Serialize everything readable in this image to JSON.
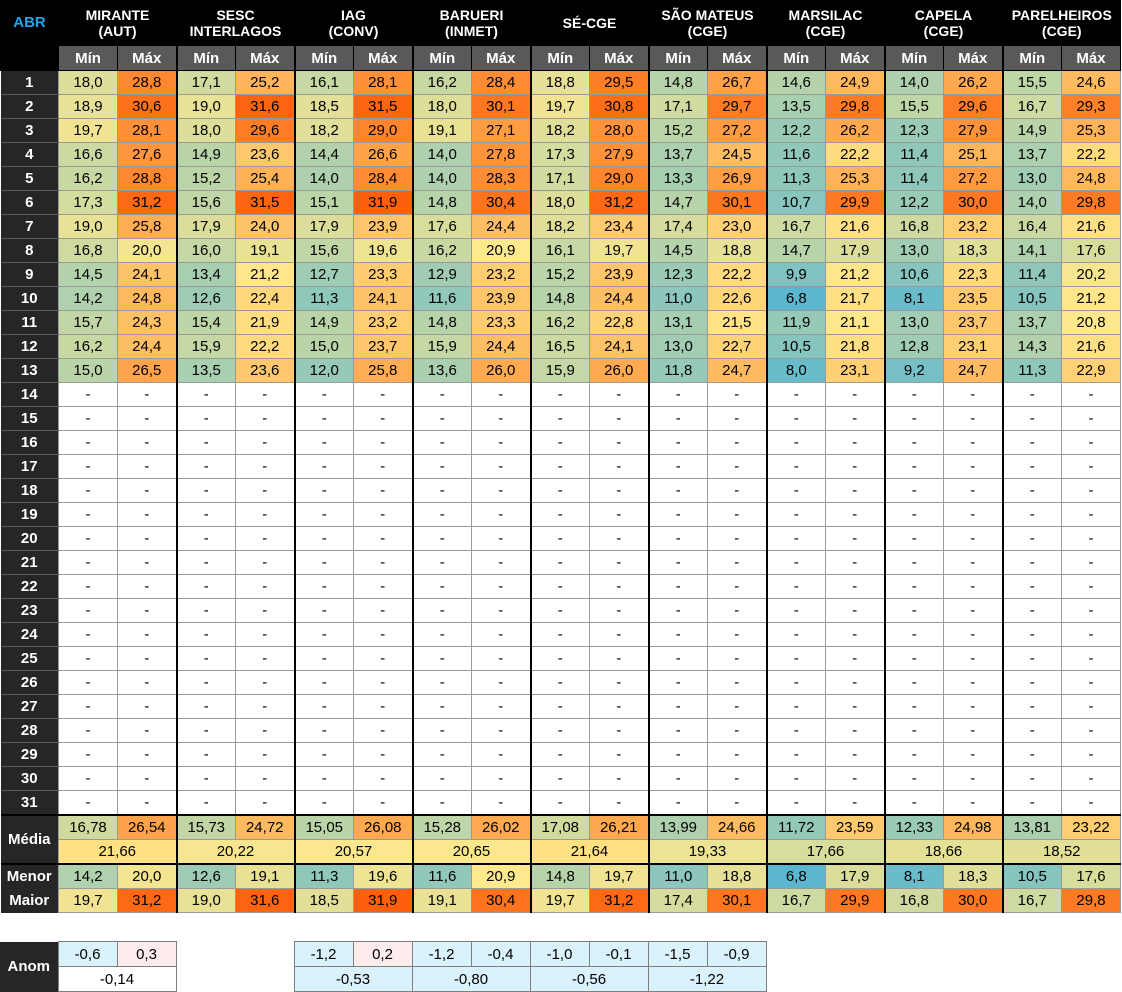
{
  "corner_label": "ABR",
  "min_label": "Mín",
  "max_label": "Máx",
  "stations": [
    {
      "line1": "MIRANTE",
      "line2": "(AUT)"
    },
    {
      "line1": "SESC",
      "line2": "INTERLAGOS"
    },
    {
      "line1": "IAG",
      "line2": "(CONV)"
    },
    {
      "line1": "BARUERI",
      "line2": "(INMET)"
    },
    {
      "line1": "SÉ-CGE",
      "line2": ""
    },
    {
      "line1": "SÃO MATEUS",
      "line2": "(CGE)"
    },
    {
      "line1": "MARSILAC",
      "line2": "(CGE)"
    },
    {
      "line1": "CAPELA",
      "line2": "(CGE)"
    },
    {
      "line1": "PARELHEIROS",
      "line2": "(CGE)"
    }
  ],
  "days": [
    {
      "day": "1",
      "values": [
        "18,0",
        "28,8",
        "17,1",
        "25,2",
        "16,1",
        "28,1",
        "16,2",
        "28,4",
        "18,8",
        "29,5",
        "14,8",
        "26,7",
        "14,6",
        "24,9",
        "14,0",
        "26,2",
        "15,5",
        "24,6"
      ]
    },
    {
      "day": "2",
      "values": [
        "18,9",
        "30,6",
        "19,0",
        "31,6",
        "18,5",
        "31,5",
        "18,0",
        "30,1",
        "19,7",
        "30,8",
        "17,1",
        "29,7",
        "13,5",
        "29,8",
        "15,5",
        "29,6",
        "16,7",
        "29,3"
      ]
    },
    {
      "day": "3",
      "values": [
        "19,7",
        "28,1",
        "18,0",
        "29,6",
        "18,2",
        "29,0",
        "19,1",
        "27,1",
        "18,2",
        "28,0",
        "15,2",
        "27,2",
        "12,2",
        "26,2",
        "12,3",
        "27,9",
        "14,9",
        "25,3"
      ]
    },
    {
      "day": "4",
      "values": [
        "16,6",
        "27,6",
        "14,9",
        "23,6",
        "14,4",
        "26,6",
        "14,0",
        "27,8",
        "17,3",
        "27,9",
        "13,7",
        "24,5",
        "11,6",
        "22,2",
        "11,4",
        "25,1",
        "13,7",
        "22,2"
      ]
    },
    {
      "day": "5",
      "values": [
        "16,2",
        "28,8",
        "15,2",
        "25,4",
        "14,0",
        "28,4",
        "14,0",
        "28,3",
        "17,1",
        "29,0",
        "13,3",
        "26,9",
        "11,3",
        "25,3",
        "11,4",
        "27,2",
        "13,0",
        "24,8"
      ]
    },
    {
      "day": "6",
      "values": [
        "17,3",
        "31,2",
        "15,6",
        "31,5",
        "15,1",
        "31,9",
        "14,8",
        "30,4",
        "18,0",
        "31,2",
        "14,7",
        "30,1",
        "10,7",
        "29,9",
        "12,2",
        "30,0",
        "14,0",
        "29,8"
      ]
    },
    {
      "day": "7",
      "values": [
        "19,0",
        "25,8",
        "17,9",
        "24,0",
        "17,9",
        "23,9",
        "17,6",
        "24,4",
        "18,2",
        "23,4",
        "17,4",
        "23,0",
        "16,7",
        "21,6",
        "16,8",
        "23,2",
        "16,4",
        "21,6"
      ]
    },
    {
      "day": "8",
      "values": [
        "16,8",
        "20,0",
        "16,0",
        "19,1",
        "15,6",
        "19,6",
        "16,2",
        "20,9",
        "16,1",
        "19,7",
        "14,5",
        "18,8",
        "14,7",
        "17,9",
        "13,0",
        "18,3",
        "14,1",
        "17,6"
      ]
    },
    {
      "day": "9",
      "values": [
        "14,5",
        "24,1",
        "13,4",
        "21,2",
        "12,7",
        "23,3",
        "12,9",
        "23,2",
        "15,2",
        "23,9",
        "12,3",
        "22,2",
        "9,9",
        "21,2",
        "10,6",
        "22,3",
        "11,4",
        "20,2"
      ]
    },
    {
      "day": "10",
      "values": [
        "14,2",
        "24,8",
        "12,6",
        "22,4",
        "11,3",
        "24,1",
        "11,6",
        "23,9",
        "14,8",
        "24,4",
        "11,0",
        "22,6",
        "6,8",
        "21,7",
        "8,1",
        "23,5",
        "10,5",
        "21,2"
      ]
    },
    {
      "day": "11",
      "values": [
        "15,7",
        "24,3",
        "15,4",
        "21,9",
        "14,9",
        "23,2",
        "14,8",
        "23,3",
        "16,2",
        "22,8",
        "13,1",
        "21,5",
        "11,9",
        "21,1",
        "13,0",
        "23,7",
        "13,7",
        "20,8"
      ]
    },
    {
      "day": "12",
      "values": [
        "16,2",
        "24,4",
        "15,9",
        "22,2",
        "15,0",
        "23,7",
        "15,9",
        "24,4",
        "16,5",
        "24,1",
        "13,0",
        "22,7",
        "10,5",
        "21,8",
        "12,8",
        "23,1",
        "14,3",
        "21,6"
      ]
    },
    {
      "day": "13",
      "values": [
        "15,0",
        "26,5",
        "13,5",
        "23,6",
        "12,0",
        "25,8",
        "13,6",
        "26,0",
        "15,9",
        "26,0",
        "11,8",
        "24,7",
        "8,0",
        "23,1",
        "9,2",
        "24,7",
        "11,3",
        "22,9"
      ]
    },
    {
      "day": "14",
      "values": []
    },
    {
      "day": "15",
      "values": []
    },
    {
      "day": "16",
      "values": []
    },
    {
      "day": "17",
      "values": []
    },
    {
      "day": "18",
      "values": []
    },
    {
      "day": "19",
      "values": []
    },
    {
      "day": "20",
      "values": []
    },
    {
      "day": "21",
      "values": []
    },
    {
      "day": "22",
      "values": []
    },
    {
      "day": "23",
      "values": []
    },
    {
      "day": "24",
      "values": []
    },
    {
      "day": "25",
      "values": []
    },
    {
      "day": "26",
      "values": []
    },
    {
      "day": "27",
      "values": []
    },
    {
      "day": "28",
      "values": []
    },
    {
      "day": "29",
      "values": []
    },
    {
      "day": "30",
      "values": []
    },
    {
      "day": "31",
      "values": []
    }
  ],
  "empty_marker": "-",
  "media_label": "Média",
  "media_values": [
    "16,78",
    "26,54",
    "15,73",
    "24,72",
    "15,05",
    "26,08",
    "15,28",
    "26,02",
    "17,08",
    "26,21",
    "13,99",
    "24,66",
    "11,72",
    "23,59",
    "12,33",
    "24,98",
    "13,81",
    "23,22"
  ],
  "media_avg": [
    "21,66",
    "20,22",
    "20,57",
    "20,65",
    "21,64",
    "19,33",
    "17,66",
    "18,66",
    "18,52"
  ],
  "menor_label": "Menor",
  "menor_values": [
    "14,2",
    "20,0",
    "12,6",
    "19,1",
    "11,3",
    "19,6",
    "11,6",
    "20,9",
    "14,8",
    "19,7",
    "11,0",
    "18,8",
    "6,8",
    "17,9",
    "8,1",
    "18,3",
    "10,5",
    "17,6"
  ],
  "maior_label": "Maior",
  "maior_values": [
    "19,7",
    "31,2",
    "19,0",
    "31,6",
    "18,5",
    "31,9",
    "19,1",
    "30,4",
    "19,7",
    "31,2",
    "17,4",
    "30,1",
    "16,7",
    "29,9",
    "16,8",
    "30,0",
    "16,7",
    "29,8"
  ],
  "anom": {
    "label": "Anom",
    "mirante": {
      "min": "-0,6",
      "max": "0,3",
      "avg": "-0,14"
    },
    "others": [
      {
        "min": "-1,2",
        "max": "0,2",
        "avg": "-0,53"
      },
      {
        "min": "-1,2",
        "max": "-0,4",
        "avg": "-0,80"
      },
      {
        "min": "-1,0",
        "max": "-0,1",
        "avg": "-0,56"
      },
      {
        "min": "-1,5",
        "max": "-0,9",
        "avg": "-1,22"
      }
    ]
  },
  "colors": {
    "scale_low": "#5bb7d0",
    "scale_mid": "#ffe98c",
    "scale_high": "#fd5f0b",
    "anom_negative": "#d9f2fb",
    "anom_positive": "#fdeceb",
    "header_bg": "#000000",
    "abr_accent": "#21a5ea"
  }
}
